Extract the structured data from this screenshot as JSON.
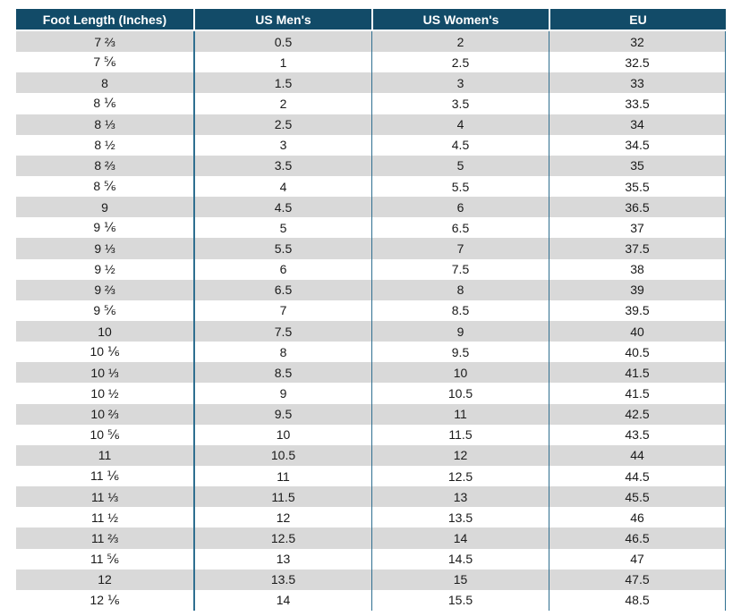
{
  "table": {
    "headers": [
      "Foot Length (Inches)",
      "US Men's",
      "US Women's",
      "EU"
    ],
    "rows": [
      [
        "7 ⅔",
        "0.5",
        "2",
        "32"
      ],
      [
        "7 ⅚",
        "1",
        "2.5",
        "32.5"
      ],
      [
        "8",
        "1.5",
        "3",
        "33"
      ],
      [
        "8 ⅙",
        "2",
        "3.5",
        "33.5"
      ],
      [
        "8 ⅓",
        "2.5",
        "4",
        "34"
      ],
      [
        "8 ½",
        "3",
        "4.5",
        "34.5"
      ],
      [
        "8 ⅔",
        "3.5",
        "5",
        "35"
      ],
      [
        "8 ⅚",
        "4",
        "5.5",
        "35.5"
      ],
      [
        "9",
        "4.5",
        "6",
        "36.5"
      ],
      [
        "9 ⅙",
        "5",
        "6.5",
        "37"
      ],
      [
        "9 ⅓",
        "5.5",
        "7",
        "37.5"
      ],
      [
        "9 ½",
        "6",
        "7.5",
        "38"
      ],
      [
        "9 ⅔",
        "6.5",
        "8",
        "39"
      ],
      [
        "9 ⅚",
        "7",
        "8.5",
        "39.5"
      ],
      [
        "10",
        "7.5",
        "9",
        "40"
      ],
      [
        "10 ⅙",
        "8",
        "9.5",
        "40.5"
      ],
      [
        "10 ⅓",
        "8.5",
        "10",
        "41.5"
      ],
      [
        "10 ½",
        "9",
        "10.5",
        "41.5"
      ],
      [
        "10 ⅔",
        "9.5",
        "11",
        "42.5"
      ],
      [
        "10 ⅚",
        "10",
        "11.5",
        "43.5"
      ],
      [
        "11",
        "10.5",
        "12",
        "44"
      ],
      [
        "11 ⅙",
        "11",
        "12.5",
        "44.5"
      ],
      [
        "11 ⅓",
        "11.5",
        "13",
        "45.5"
      ],
      [
        "11 ½",
        "12",
        "13.5",
        "46"
      ],
      [
        "11 ⅔",
        "12.5",
        "14",
        "46.5"
      ],
      [
        "11 ⅚",
        "13",
        "14.5",
        "47"
      ],
      [
        "12",
        "13.5",
        "15",
        "47.5"
      ],
      [
        "12 ⅙",
        "14",
        "15.5",
        "48.5"
      ]
    ]
  },
  "colors": {
    "header_bg": "#124b68",
    "stripe_bg": "#d9d9d9",
    "divider": "#2f6f90"
  }
}
